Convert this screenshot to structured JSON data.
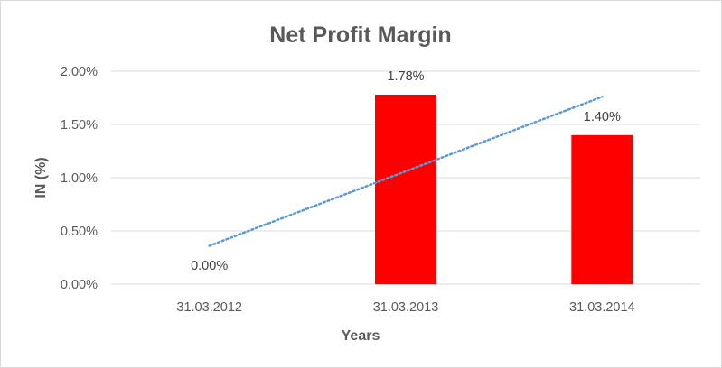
{
  "chart_data": {
    "type": "bar",
    "title": "Net Profit Margin",
    "xlabel": "Years",
    "ylabel": "IN (%)",
    "categories": [
      "31.03.2012",
      "31.03.2013",
      "31.03.2014"
    ],
    "values": [
      0.0,
      1.78,
      1.4
    ],
    "data_labels": [
      "0.00%",
      "1.78%",
      "1.40%"
    ],
    "ylim": [
      0,
      2.0
    ],
    "yticks": [
      0,
      0.5,
      1.0,
      1.5,
      2.0
    ],
    "ytick_labels": [
      "0.00%",
      "0.50%",
      "1.00%",
      "1.50%",
      "2.00%"
    ],
    "grid": true,
    "legend": "none",
    "trendline": {
      "type": "linear",
      "style": "dotted",
      "color": "#5b9bd5"
    },
    "bar_color": "#ff0000",
    "gridline_color": "#d9d9d9",
    "text_color": "#595959"
  }
}
